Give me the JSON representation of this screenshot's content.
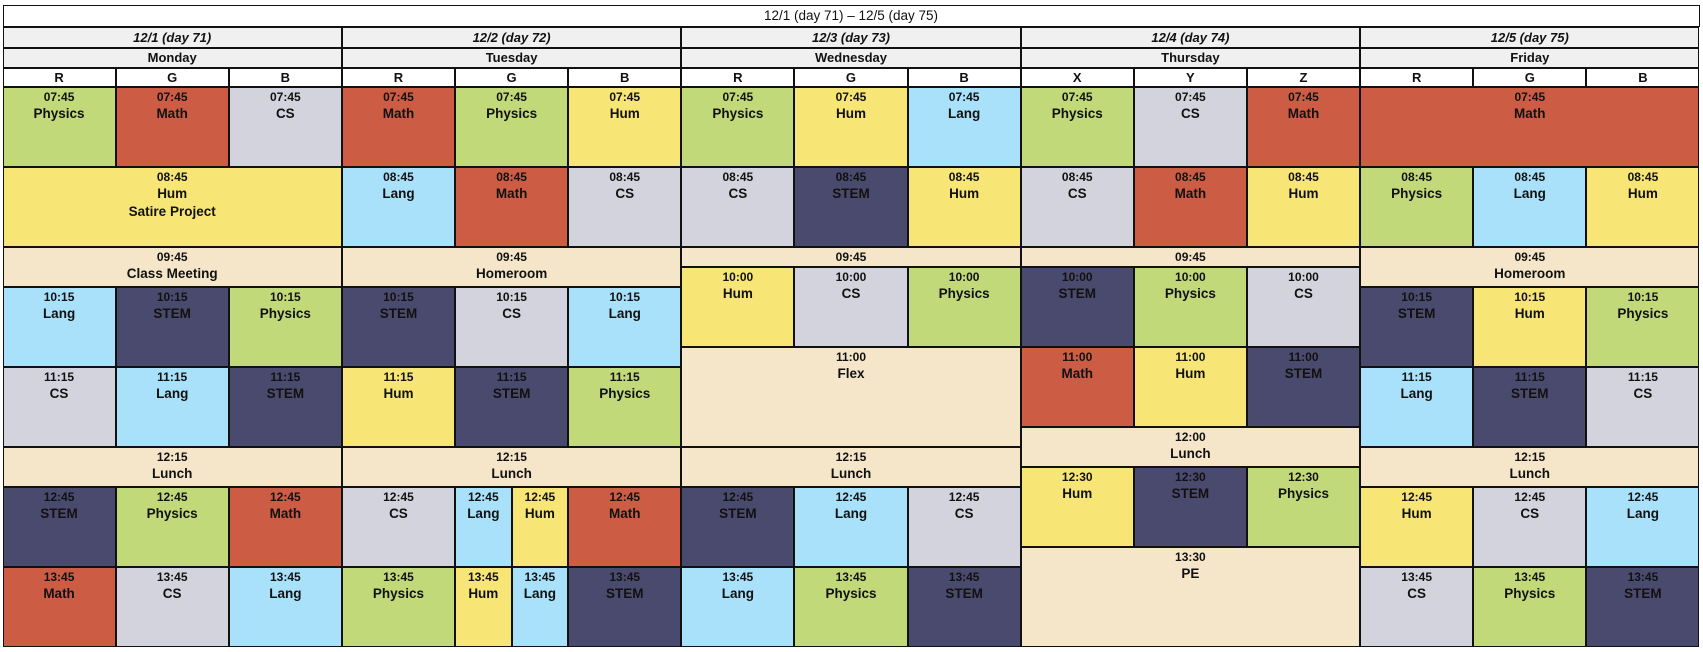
{
  "title": "12/1 (day 71) – 12/5 (day 75)",
  "colors": {
    "Math": "#cd5c45",
    "Physics": "#c2d97a",
    "CS": "#d3d3dd",
    "Hum": "#f7e676",
    "Lang": "#a8e1f9",
    "STEM": "#4a4a6e",
    "Break": "#f6e6c9",
    "header": "#f0f0f0"
  },
  "days": [
    {
      "date": "12/1 (day 71)",
      "name": "Monday",
      "tracks": [
        "R",
        "G",
        "B"
      ],
      "events": [
        {
          "start": "07:45",
          "end": "08:45",
          "c0": 0,
          "c1": 1,
          "subj": "Physics"
        },
        {
          "start": "07:45",
          "end": "08:45",
          "c0": 1,
          "c1": 2,
          "subj": "Math"
        },
        {
          "start": "07:45",
          "end": "08:45",
          "c0": 2,
          "c1": 3,
          "subj": "CS"
        },
        {
          "start": "08:45",
          "end": "09:45",
          "c0": 0,
          "c1": 3,
          "subj": "Hum",
          "note": "Satire Project"
        },
        {
          "start": "09:45",
          "end": "10:15",
          "c0": 0,
          "c1": 3,
          "subj": "Class Meeting",
          "kind": "Break"
        },
        {
          "start": "10:15",
          "end": "11:15",
          "c0": 0,
          "c1": 1,
          "subj": "Lang"
        },
        {
          "start": "10:15",
          "end": "11:15",
          "c0": 1,
          "c1": 2,
          "subj": "STEM"
        },
        {
          "start": "10:15",
          "end": "11:15",
          "c0": 2,
          "c1": 3,
          "subj": "Physics"
        },
        {
          "start": "11:15",
          "end": "12:15",
          "c0": 0,
          "c1": 1,
          "subj": "CS"
        },
        {
          "start": "11:15",
          "end": "12:15",
          "c0": 1,
          "c1": 2,
          "subj": "Lang"
        },
        {
          "start": "11:15",
          "end": "12:15",
          "c0": 2,
          "c1": 3,
          "subj": "STEM"
        },
        {
          "start": "12:15",
          "end": "12:45",
          "c0": 0,
          "c1": 3,
          "subj": "Lunch",
          "kind": "Break"
        },
        {
          "start": "12:45",
          "end": "13:45",
          "c0": 0,
          "c1": 1,
          "subj": "STEM"
        },
        {
          "start": "12:45",
          "end": "13:45",
          "c0": 1,
          "c1": 2,
          "subj": "Physics"
        },
        {
          "start": "12:45",
          "end": "13:45",
          "c0": 2,
          "c1": 3,
          "subj": "Math"
        },
        {
          "start": "13:45",
          "end": "14:45",
          "c0": 0,
          "c1": 1,
          "subj": "Math"
        },
        {
          "start": "13:45",
          "end": "14:45",
          "c0": 1,
          "c1": 2,
          "subj": "CS"
        },
        {
          "start": "13:45",
          "end": "14:45",
          "c0": 2,
          "c1": 3,
          "subj": "Lang"
        }
      ]
    },
    {
      "date": "12/2 (day 72)",
      "name": "Tuesday",
      "tracks": [
        "R",
        "G",
        "B"
      ],
      "events": [
        {
          "start": "07:45",
          "end": "08:45",
          "c0": 0,
          "c1": 1,
          "subj": "Math"
        },
        {
          "start": "07:45",
          "end": "08:45",
          "c0": 1,
          "c1": 2,
          "subj": "Physics"
        },
        {
          "start": "07:45",
          "end": "08:45",
          "c0": 2,
          "c1": 3,
          "subj": "Hum"
        },
        {
          "start": "08:45",
          "end": "09:45",
          "c0": 0,
          "c1": 1,
          "subj": "Lang"
        },
        {
          "start": "08:45",
          "end": "09:45",
          "c0": 1,
          "c1": 2,
          "subj": "Math"
        },
        {
          "start": "08:45",
          "end": "09:45",
          "c0": 2,
          "c1": 3,
          "subj": "CS"
        },
        {
          "start": "09:45",
          "end": "10:15",
          "c0": 0,
          "c1": 3,
          "subj": "Homeroom",
          "kind": "Break"
        },
        {
          "start": "10:15",
          "end": "11:15",
          "c0": 0,
          "c1": 1,
          "subj": "STEM"
        },
        {
          "start": "10:15",
          "end": "11:15",
          "c0": 1,
          "c1": 2,
          "subj": "CS"
        },
        {
          "start": "10:15",
          "end": "11:15",
          "c0": 2,
          "c1": 3,
          "subj": "Lang"
        },
        {
          "start": "11:15",
          "end": "12:15",
          "c0": 0,
          "c1": 1,
          "subj": "Hum"
        },
        {
          "start": "11:15",
          "end": "12:15",
          "c0": 1,
          "c1": 2,
          "subj": "STEM"
        },
        {
          "start": "11:15",
          "end": "12:15",
          "c0": 2,
          "c1": 3,
          "subj": "Physics"
        },
        {
          "start": "12:15",
          "end": "12:45",
          "c0": 0,
          "c1": 3,
          "subj": "Lunch",
          "kind": "Break"
        },
        {
          "start": "12:45",
          "end": "13:45",
          "c0": 0,
          "c1": 1,
          "subj": "CS"
        },
        {
          "start": "12:45",
          "end": "13:45",
          "c0": 1,
          "c1": 1.5,
          "subj": "Lang"
        },
        {
          "start": "12:45",
          "end": "13:45",
          "c0": 1.5,
          "c1": 2,
          "subj": "Hum"
        },
        {
          "start": "12:45",
          "end": "13:45",
          "c0": 2,
          "c1": 3,
          "subj": "Math"
        },
        {
          "start": "13:45",
          "end": "14:45",
          "c0": 0,
          "c1": 1,
          "subj": "Physics"
        },
        {
          "start": "13:45",
          "end": "14:45",
          "c0": 1,
          "c1": 1.5,
          "subj": "Hum"
        },
        {
          "start": "13:45",
          "end": "14:45",
          "c0": 1.5,
          "c1": 2,
          "subj": "Lang"
        },
        {
          "start": "13:45",
          "end": "14:45",
          "c0": 2,
          "c1": 3,
          "subj": "STEM"
        }
      ]
    },
    {
      "date": "12/3 (day 73)",
      "name": "Wednesday",
      "tracks": [
        "R",
        "G",
        "B"
      ],
      "events": [
        {
          "start": "07:45",
          "end": "08:45",
          "c0": 0,
          "c1": 1,
          "subj": "Physics"
        },
        {
          "start": "07:45",
          "end": "08:45",
          "c0": 1,
          "c1": 2,
          "subj": "Hum"
        },
        {
          "start": "07:45",
          "end": "08:45",
          "c0": 2,
          "c1": 3,
          "subj": "Lang"
        },
        {
          "start": "08:45",
          "end": "09:45",
          "c0": 0,
          "c1": 1,
          "subj": "CS"
        },
        {
          "start": "08:45",
          "end": "09:45",
          "c0": 1,
          "c1": 2,
          "subj": "STEM"
        },
        {
          "start": "08:45",
          "end": "09:45",
          "c0": 2,
          "c1": 3,
          "subj": "Hum"
        },
        {
          "start": "09:45",
          "end": "10:00",
          "c0": 0,
          "c1": 3,
          "subj": "",
          "kind": "Break"
        },
        {
          "start": "10:00",
          "end": "11:00",
          "c0": 0,
          "c1": 1,
          "subj": "Hum"
        },
        {
          "start": "10:00",
          "end": "11:00",
          "c0": 1,
          "c1": 2,
          "subj": "CS"
        },
        {
          "start": "10:00",
          "end": "11:00",
          "c0": 2,
          "c1": 3,
          "subj": "Physics"
        },
        {
          "start": "11:00",
          "end": "12:15",
          "c0": 0,
          "c1": 3,
          "subj": "Flex",
          "kind": "Break"
        },
        {
          "start": "12:15",
          "end": "12:45",
          "c0": 0,
          "c1": 3,
          "subj": "Lunch",
          "kind": "Break"
        },
        {
          "start": "12:45",
          "end": "13:45",
          "c0": 0,
          "c1": 1,
          "subj": "STEM"
        },
        {
          "start": "12:45",
          "end": "13:45",
          "c0": 1,
          "c1": 2,
          "subj": "Lang"
        },
        {
          "start": "12:45",
          "end": "13:45",
          "c0": 2,
          "c1": 3,
          "subj": "CS"
        },
        {
          "start": "13:45",
          "end": "14:45",
          "c0": 0,
          "c1": 1,
          "subj": "Lang"
        },
        {
          "start": "13:45",
          "end": "14:45",
          "c0": 1,
          "c1": 2,
          "subj": "Physics"
        },
        {
          "start": "13:45",
          "end": "14:45",
          "c0": 2,
          "c1": 3,
          "subj": "STEM"
        }
      ]
    },
    {
      "date": "12/4 (day 74)",
      "name": "Thursday",
      "tracks": [
        "X",
        "Y",
        "Z"
      ],
      "events": [
        {
          "start": "07:45",
          "end": "08:45",
          "c0": 0,
          "c1": 1,
          "subj": "Physics"
        },
        {
          "start": "07:45",
          "end": "08:45",
          "c0": 1,
          "c1": 2,
          "subj": "CS"
        },
        {
          "start": "07:45",
          "end": "08:45",
          "c0": 2,
          "c1": 3,
          "subj": "Math"
        },
        {
          "start": "08:45",
          "end": "09:45",
          "c0": 0,
          "c1": 1,
          "subj": "CS"
        },
        {
          "start": "08:45",
          "end": "09:45",
          "c0": 1,
          "c1": 2,
          "subj": "Math"
        },
        {
          "start": "08:45",
          "end": "09:45",
          "c0": 2,
          "c1": 3,
          "subj": "Hum"
        },
        {
          "start": "09:45",
          "end": "10:00",
          "c0": 0,
          "c1": 3,
          "subj": "",
          "kind": "Break"
        },
        {
          "start": "10:00",
          "end": "11:00",
          "c0": 0,
          "c1": 1,
          "subj": "STEM"
        },
        {
          "start": "10:00",
          "end": "11:00",
          "c0": 1,
          "c1": 2,
          "subj": "Physics"
        },
        {
          "start": "10:00",
          "end": "11:00",
          "c0": 2,
          "c1": 3,
          "subj": "CS"
        },
        {
          "start": "11:00",
          "end": "12:00",
          "c0": 0,
          "c1": 1,
          "subj": "Math"
        },
        {
          "start": "11:00",
          "end": "12:00",
          "c0": 1,
          "c1": 2,
          "subj": "Hum"
        },
        {
          "start": "11:00",
          "end": "12:00",
          "c0": 2,
          "c1": 3,
          "subj": "STEM"
        },
        {
          "start": "12:00",
          "end": "12:30",
          "c0": 0,
          "c1": 3,
          "subj": "Lunch",
          "kind": "Break"
        },
        {
          "start": "12:30",
          "end": "13:30",
          "c0": 0,
          "c1": 1,
          "subj": "Hum"
        },
        {
          "start": "12:30",
          "end": "13:30",
          "c0": 1,
          "c1": 2,
          "subj": "STEM"
        },
        {
          "start": "12:30",
          "end": "13:30",
          "c0": 2,
          "c1": 3,
          "subj": "Physics"
        },
        {
          "start": "13:30",
          "end": "14:45",
          "c0": 0,
          "c1": 3,
          "subj": "PE",
          "kind": "Break"
        }
      ]
    },
    {
      "date": "12/5 (day 75)",
      "name": "Friday",
      "tracks": [
        "R",
        "G",
        "B"
      ],
      "events": [
        {
          "start": "07:45",
          "end": "08:45",
          "c0": 0,
          "c1": 3,
          "subj": "Math"
        },
        {
          "start": "08:45",
          "end": "09:45",
          "c0": 0,
          "c1": 1,
          "subj": "Physics"
        },
        {
          "start": "08:45",
          "end": "09:45",
          "c0": 1,
          "c1": 2,
          "subj": "Lang"
        },
        {
          "start": "08:45",
          "end": "09:45",
          "c0": 2,
          "c1": 3,
          "subj": "Hum"
        },
        {
          "start": "09:45",
          "end": "10:15",
          "c0": 0,
          "c1": 3,
          "subj": "Homeroom",
          "kind": "Break"
        },
        {
          "start": "10:15",
          "end": "11:15",
          "c0": 0,
          "c1": 1,
          "subj": "STEM"
        },
        {
          "start": "10:15",
          "end": "11:15",
          "c0": 1,
          "c1": 2,
          "subj": "Hum"
        },
        {
          "start": "10:15",
          "end": "11:15",
          "c0": 2,
          "c1": 3,
          "subj": "Physics"
        },
        {
          "start": "11:15",
          "end": "12:15",
          "c0": 0,
          "c1": 1,
          "subj": "Lang"
        },
        {
          "start": "11:15",
          "end": "12:15",
          "c0": 1,
          "c1": 2,
          "subj": "STEM"
        },
        {
          "start": "11:15",
          "end": "12:15",
          "c0": 2,
          "c1": 3,
          "subj": "CS"
        },
        {
          "start": "12:15",
          "end": "12:45",
          "c0": 0,
          "c1": 3,
          "subj": "Lunch",
          "kind": "Break"
        },
        {
          "start": "12:45",
          "end": "13:45",
          "c0": 0,
          "c1": 1,
          "subj": "Hum"
        },
        {
          "start": "12:45",
          "end": "13:45",
          "c0": 1,
          "c1": 2,
          "subj": "CS"
        },
        {
          "start": "12:45",
          "end": "13:45",
          "c0": 2,
          "c1": 3,
          "subj": "Lang"
        },
        {
          "start": "13:45",
          "end": "14:45",
          "c0": 0,
          "c1": 1,
          "subj": "CS"
        },
        {
          "start": "13:45",
          "end": "14:45",
          "c0": 1,
          "c1": 2,
          "subj": "Physics"
        },
        {
          "start": "13:45",
          "end": "14:45",
          "c0": 2,
          "c1": 3,
          "subj": "STEM"
        }
      ]
    }
  ]
}
